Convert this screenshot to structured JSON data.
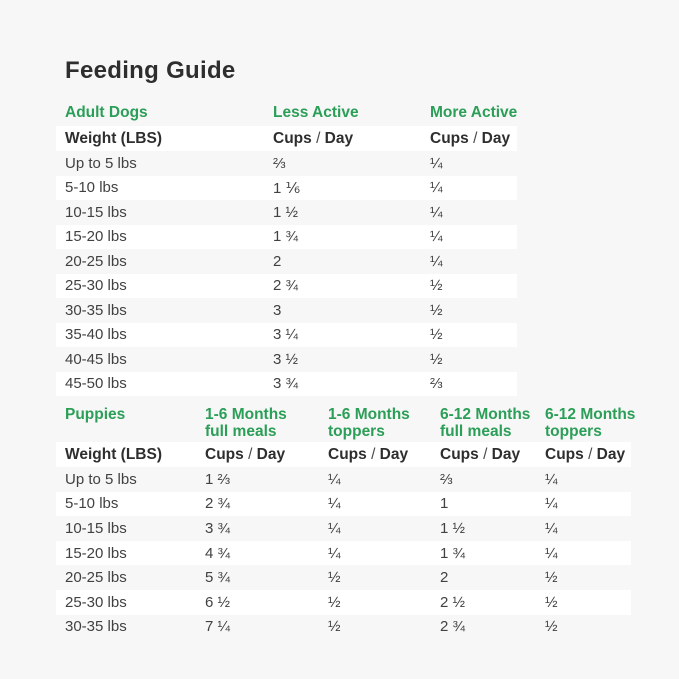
{
  "page": {
    "title": "Feeding Guide"
  },
  "colors": {
    "green": "#2B9E57",
    "text_dark": "#2E2E2E",
    "text_body": "#414141",
    "background": "#F7F7F7",
    "stripe": "#FFFFFF"
  },
  "tables": [
    {
      "id": "adult",
      "section_headers": [
        "Adult Dogs",
        "Less Active",
        "More Active"
      ],
      "column_headers": [
        "Weight (LBS)",
        "Cups / Day",
        "Cups / Day"
      ],
      "rows": [
        [
          "Up to 5 lbs",
          "⅔",
          "¼"
        ],
        [
          "5-10 lbs",
          "1 ⅙",
          "¼"
        ],
        [
          "10-15 lbs",
          "1 ½",
          "¼"
        ],
        [
          "15-20 lbs",
          "1 ¾",
          "¼"
        ],
        [
          "20-25 lbs",
          "2",
          "¼"
        ],
        [
          "25-30 lbs",
          "2 ¾",
          "½"
        ],
        [
          "30-35 lbs",
          "3",
          "½"
        ],
        [
          "35-40 lbs",
          "3 ¼",
          "½"
        ],
        [
          "40-45 lbs",
          "3 ½",
          "½"
        ],
        [
          "45-50 lbs",
          "3 ¾",
          "⅔"
        ]
      ]
    },
    {
      "id": "puppies",
      "section_headers": [
        "Puppies",
        "1-6 Months\nfull meals",
        "1-6 Months\ntoppers",
        "6-12 Months\nfull meals",
        "6-12 Months\ntoppers"
      ],
      "column_headers": [
        "Weight (LBS)",
        "Cups / Day",
        "Cups / Day",
        "Cups / Day",
        "Cups / Day"
      ],
      "rows": [
        [
          "Up to 5 lbs",
          "1 ⅔",
          "¼",
          "⅔",
          "¼"
        ],
        [
          "5-10 lbs",
          "2 ¾",
          "¼",
          "1",
          "¼"
        ],
        [
          "10-15 lbs",
          "3 ¾",
          "¼",
          "1 ½",
          "¼"
        ],
        [
          "15-20 lbs",
          "4 ¾",
          "¼",
          "1 ¾",
          "¼"
        ],
        [
          "20-25 lbs",
          "5 ¾",
          "½",
          "2",
          "½"
        ],
        [
          "25-30 lbs",
          "6 ½",
          "½",
          "2 ½",
          "½"
        ],
        [
          "30-35 lbs",
          "7 ¼",
          "½",
          "2 ¾",
          "½"
        ]
      ]
    }
  ]
}
